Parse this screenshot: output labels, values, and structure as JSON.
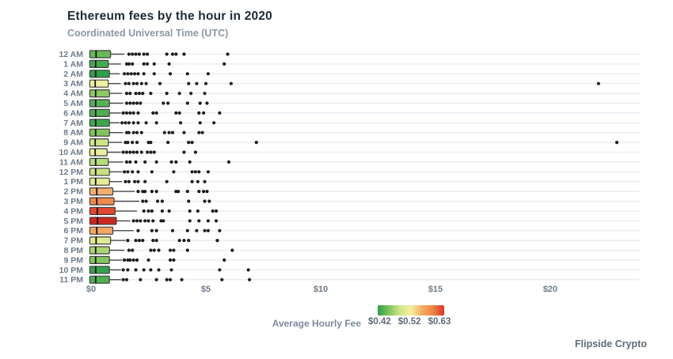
{
  "header": {
    "title": "Ethereum fees by the hour in 2020",
    "subtitle": "Coordinated Universal Time (UTC)"
  },
  "legend": {
    "label": "Average Hourly Fee",
    "ticks": [
      "$0.42",
      "$0.52",
      "$0.63"
    ],
    "gradient_colors": [
      "#2f9e4b",
      "#7fc45b",
      "#cfe687",
      "#f3ef9d",
      "#f4ac66",
      "#ee8444",
      "#dd3426"
    ]
  },
  "footer": {
    "brand": "Flipside Crypto"
  },
  "colors": {
    "title_text": "#1e2936",
    "subtitle_text": "#8b96a7",
    "axis_text": "#6e7b8a",
    "gridline": "#ececf5",
    "box_stroke": "#3f3f3f",
    "whisker": "#4a4a4a",
    "outlier_dot": "#1d1d1d"
  },
  "chart_data": {
    "type": "boxplot-horizontal",
    "title": "Ethereum fees by the hour in 2020",
    "subtitle": "Coordinated Universal Time (UTC)",
    "x_unit": "USD fee",
    "xlim": [
      0,
      24
    ],
    "x_ticks": [
      {
        "label": "$0",
        "value": 0
      },
      {
        "label": "$5",
        "value": 5
      },
      {
        "label": "$10",
        "value": 10
      },
      {
        "label": "$15",
        "value": 15
      },
      {
        "label": "$20",
        "value": 20
      }
    ],
    "grid": true,
    "legend_position": "bottom",
    "color_scale": {
      "min": 0.42,
      "mid": 0.52,
      "max": 0.63,
      "low_color": "#2f9e4b",
      "mid_color": "#f3ef9d",
      "high_color": "#dd3426"
    },
    "rows": [
      {
        "label": "12 AM",
        "avg_fee_est": 0.46,
        "color": "#66bb55",
        "q1": 0.05,
        "median": 0.22,
        "q3": 0.85,
        "whisker_low": 0.0,
        "whisker_high": 1.45,
        "outliers": [
          1.65,
          1.8,
          1.95,
          2.1,
          2.3,
          2.45,
          3.3,
          3.55,
          3.7,
          4.05,
          5.95
        ]
      },
      {
        "label": "1 AM",
        "avg_fee_est": 0.44,
        "color": "#44aa50",
        "q1": 0.05,
        "median": 0.2,
        "q3": 0.75,
        "whisker_low": 0.0,
        "whisker_high": 1.3,
        "outliers": [
          1.55,
          1.65,
          1.8,
          2.3,
          2.45,
          2.75,
          3.4,
          5.8
        ]
      },
      {
        "label": "2 AM",
        "avg_fee_est": 0.42,
        "color": "#2e9e48",
        "q1": 0.05,
        "median": 0.2,
        "q3": 0.8,
        "whisker_low": 0.0,
        "whisker_high": 1.25,
        "outliers": [
          1.45,
          1.6,
          1.75,
          1.9,
          2.05,
          2.3,
          2.75,
          3.45,
          4.2,
          5.1
        ]
      },
      {
        "label": "3 AM",
        "avg_fee_est": 0.52,
        "color": "#eeefa0",
        "q1": 0.05,
        "median": 0.18,
        "q3": 0.75,
        "whisker_low": 0.0,
        "whisker_high": 1.3,
        "outliers": [
          1.5,
          1.65,
          1.85,
          2.0,
          2.2,
          2.4,
          3.0,
          4.25,
          4.6,
          5.0,
          6.1,
          22.1
        ]
      },
      {
        "label": "4 AM",
        "avg_fee_est": 0.47,
        "color": "#8cc962",
        "q1": 0.05,
        "median": 0.2,
        "q3": 0.8,
        "whisker_low": 0.0,
        "whisker_high": 1.35,
        "outliers": [
          1.55,
          1.7,
          1.95,
          2.1,
          2.25,
          2.6,
          3.3,
          3.85,
          4.35,
          4.95
        ]
      },
      {
        "label": "5 AM",
        "avg_fee_est": 0.45,
        "color": "#55b353",
        "q1": 0.05,
        "median": 0.2,
        "q3": 0.8,
        "whisker_low": 0.0,
        "whisker_high": 1.4,
        "outliers": [
          1.55,
          1.7,
          1.85,
          2.0,
          2.15,
          3.15,
          3.35,
          4.2,
          4.75,
          5.05
        ]
      },
      {
        "label": "6 AM",
        "avg_fee_est": 0.45,
        "color": "#4ead50",
        "q1": 0.05,
        "median": 0.2,
        "q3": 0.8,
        "whisker_low": 0.0,
        "whisker_high": 1.3,
        "outliers": [
          1.4,
          1.55,
          1.7,
          1.85,
          2.05,
          2.7,
          2.85,
          3.7,
          3.85,
          4.7,
          4.9,
          5.6
        ]
      },
      {
        "label": "7 AM",
        "avg_fee_est": 0.44,
        "color": "#3ba64c",
        "q1": 0.05,
        "median": 0.2,
        "q3": 0.8,
        "whisker_low": 0.0,
        "whisker_high": 1.25,
        "outliers": [
          1.35,
          1.5,
          1.65,
          1.85,
          2.05,
          2.4,
          2.85,
          3.9,
          4.75,
          5.35
        ]
      },
      {
        "label": "8 AM",
        "avg_fee_est": 0.47,
        "color": "#7fc45b",
        "q1": 0.05,
        "median": 0.2,
        "q3": 0.8,
        "whisker_low": 0.0,
        "whisker_high": 1.4,
        "outliers": [
          1.55,
          1.65,
          1.85,
          2.0,
          2.2,
          3.2,
          3.4,
          3.55,
          4.05,
          4.7,
          4.85
        ]
      },
      {
        "label": "9 AM",
        "avg_fee_est": 0.51,
        "color": "#cfe687",
        "q1": 0.05,
        "median": 0.18,
        "q3": 0.75,
        "whisker_low": 0.0,
        "whisker_high": 1.35,
        "outliers": [
          1.5,
          1.6,
          1.8,
          2.0,
          2.5,
          2.6,
          3.35,
          4.25,
          4.4,
          7.2,
          22.9
        ]
      },
      {
        "label": "10 AM",
        "avg_fee_est": 0.52,
        "color": "#ebee9b",
        "q1": 0.05,
        "median": 0.18,
        "q3": 0.7,
        "whisker_low": 0.0,
        "whisker_high": 1.3,
        "outliers": [
          1.4,
          1.55,
          1.7,
          1.85,
          2.0,
          2.2,
          2.45,
          2.6,
          2.75,
          4.05,
          4.55
        ]
      },
      {
        "label": "11 AM",
        "avg_fee_est": 0.49,
        "color": "#b5dc78",
        "q1": 0.05,
        "median": 0.2,
        "q3": 0.75,
        "whisker_low": 0.0,
        "whisker_high": 1.4,
        "outliers": [
          1.55,
          1.7,
          1.95,
          2.35,
          2.85,
          3.5,
          3.7,
          4.3,
          6.0
        ]
      },
      {
        "label": "12 PM",
        "avg_fee_est": 0.5,
        "color": "#c8e281",
        "q1": 0.05,
        "median": 0.2,
        "q3": 0.8,
        "whisker_low": 0.0,
        "whisker_high": 1.35,
        "outliers": [
          1.45,
          1.6,
          1.8,
          2.05,
          2.65,
          3.6,
          4.4,
          4.55,
          4.7,
          5.1
        ]
      },
      {
        "label": "1 PM",
        "avg_fee_est": 0.52,
        "color": "#e6ec95",
        "q1": 0.05,
        "median": 0.2,
        "q3": 0.8,
        "whisker_low": 0.0,
        "whisker_high": 1.35,
        "outliers": [
          1.5,
          1.65,
          1.9,
          2.05,
          2.35,
          3.3,
          4.4,
          4.65,
          4.95
        ]
      },
      {
        "label": "2 PM",
        "avg_fee_est": 0.56,
        "color": "#f4af6d",
        "q1": 0.05,
        "median": 0.25,
        "q3": 0.95,
        "whisker_low": 0.0,
        "whisker_high": 1.9,
        "outliers": [
          2.05,
          2.25,
          2.35,
          2.65,
          2.85,
          3.7,
          3.8,
          4.2,
          4.7,
          4.9,
          5.05
        ]
      },
      {
        "label": "3 PM",
        "avg_fee_est": 0.58,
        "color": "#f08a4b",
        "q1": 0.05,
        "median": 0.25,
        "q3": 1.0,
        "whisker_low": 0.0,
        "whisker_high": 2.1,
        "outliers": [
          2.25,
          2.4,
          2.9,
          3.1,
          4.25,
          4.95,
          5.15
        ]
      },
      {
        "label": "4 PM",
        "avg_fee_est": 0.61,
        "color": "#e1472e",
        "q1": 0.05,
        "median": 0.27,
        "q3": 1.05,
        "whisker_low": 0.0,
        "whisker_high": 2.0,
        "outliers": [
          2.3,
          2.5,
          2.65,
          3.1,
          3.4,
          4.3,
          4.65,
          5.3,
          5.45
        ]
      },
      {
        "label": "5 PM",
        "avg_fee_est": 0.63,
        "color": "#cb2722",
        "q1": 0.05,
        "median": 0.28,
        "q3": 1.1,
        "whisker_low": 0.0,
        "whisker_high": 1.7,
        "outliers": [
          1.85,
          2.0,
          2.15,
          2.35,
          2.5,
          2.7,
          3.05,
          3.15,
          4.3,
          4.7,
          5.1,
          5.45
        ]
      },
      {
        "label": "6 PM",
        "avg_fee_est": 0.56,
        "color": "#f3a761",
        "q1": 0.05,
        "median": 0.25,
        "q3": 0.95,
        "whisker_low": 0.0,
        "whisker_high": 1.85,
        "outliers": [
          2.05,
          2.65,
          2.85,
          3.55,
          4.2,
          4.6,
          4.95,
          5.1,
          5.6
        ]
      },
      {
        "label": "7 PM",
        "avg_fee_est": 0.51,
        "color": "#dfea92",
        "q1": 0.05,
        "median": 0.22,
        "q3": 0.85,
        "whisker_low": 0.0,
        "whisker_high": 1.5,
        "outliers": [
          1.6,
          1.95,
          2.1,
          2.25,
          2.7,
          2.85,
          3.85,
          4.05,
          4.25,
          5.5
        ]
      },
      {
        "label": "8 PM",
        "avg_fee_est": 0.49,
        "color": "#abd571",
        "q1": 0.05,
        "median": 0.2,
        "q3": 0.8,
        "whisker_low": 0.0,
        "whisker_high": 1.45,
        "outliers": [
          1.65,
          1.8,
          2.6,
          2.75,
          2.95,
          3.45,
          3.6,
          4.2,
          6.15
        ]
      },
      {
        "label": "9 PM",
        "avg_fee_est": 0.47,
        "color": "#82c55c",
        "q1": 0.05,
        "median": 0.2,
        "q3": 0.8,
        "whisker_low": 0.0,
        "whisker_high": 1.35,
        "outliers": [
          1.45,
          1.6,
          1.7,
          1.85,
          2.0,
          2.5,
          3.45,
          3.6,
          5.8
        ]
      },
      {
        "label": "10 PM",
        "avg_fee_est": 0.42,
        "color": "#35a34a",
        "q1": 0.05,
        "median": 0.2,
        "q3": 0.8,
        "whisker_low": 0.0,
        "whisker_high": 1.3,
        "outliers": [
          1.4,
          1.6,
          1.95,
          2.3,
          2.6,
          2.95,
          3.5,
          5.6,
          6.85
        ]
      },
      {
        "label": "11 PM",
        "avg_fee_est": 0.44,
        "color": "#4fb050",
        "q1": 0.05,
        "median": 0.2,
        "q3": 0.8,
        "whisker_low": 0.0,
        "whisker_high": 1.3,
        "outliers": [
          1.4,
          1.55,
          2.15,
          2.85,
          3.3,
          3.45,
          3.95,
          5.7,
          6.9
        ]
      }
    ]
  }
}
